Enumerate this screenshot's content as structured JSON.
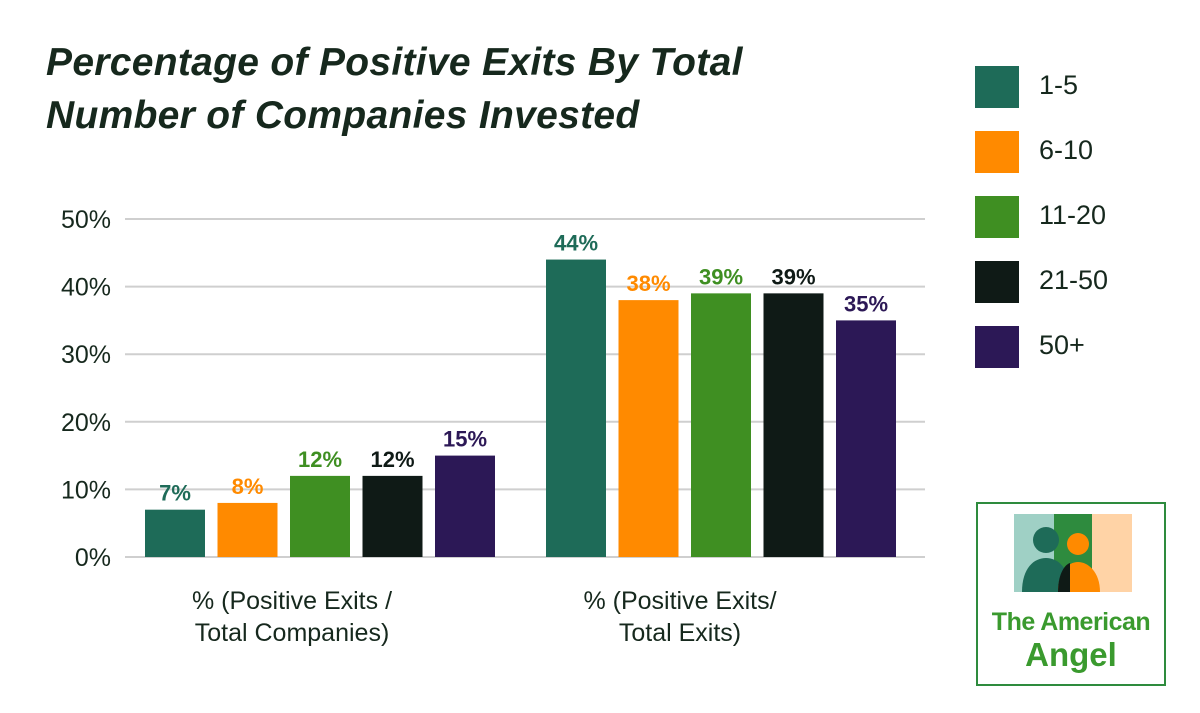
{
  "title_lines": [
    "Percentage of Positive Exits By Total",
    "Number of Companies Invested"
  ],
  "legend": [
    {
      "label": "1-5",
      "color": "#1e6b58"
    },
    {
      "label": "6-10",
      "color": "#ff8a00"
    },
    {
      "label": "11-20",
      "color": "#3f8f22"
    },
    {
      "label": "21-50",
      "color": "#0f1a16"
    },
    {
      "label": "50+",
      "color": "#2c1856"
    }
  ],
  "logo": {
    "line1": "The American",
    "line2": "Angel"
  },
  "chart_data": {
    "type": "bar",
    "title": "Percentage of Positive Exits By Total Number of Companies Invested",
    "categories": [
      "% (Positive Exits / Total Companies)",
      "% (Positive Exits/ Total Exits)"
    ],
    "category_label_lines": [
      [
        "% (Positive Exits /",
        "Total Companies)"
      ],
      [
        "% (Positive Exits/",
        "Total Exits)"
      ]
    ],
    "series": [
      {
        "name": "1-5",
        "values": [
          7,
          44
        ],
        "labels": [
          "7%",
          "44%"
        ]
      },
      {
        "name": "6-10",
        "values": [
          8,
          38
        ],
        "labels": [
          "8%",
          "38%"
        ]
      },
      {
        "name": "11-20",
        "values": [
          12,
          39
        ],
        "labels": [
          "12%",
          "39%"
        ]
      },
      {
        "name": "21-50",
        "values": [
          12,
          39
        ],
        "labels": [
          "12%",
          "39%"
        ]
      },
      {
        "name": "50+",
        "values": [
          15,
          35
        ],
        "labels": [
          "15%",
          "35%"
        ]
      }
    ],
    "yticks": [
      "0%",
      "10%",
      "20%",
      "30%",
      "40%",
      "50%"
    ],
    "ylim": [
      0,
      50
    ],
    "grid": true,
    "legend_position": "right"
  }
}
